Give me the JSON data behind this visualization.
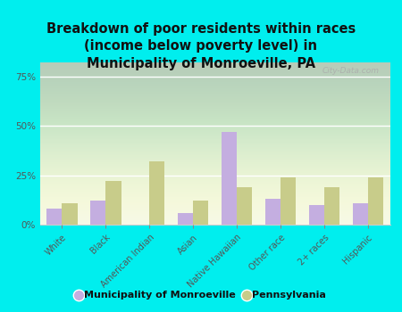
{
  "title": "Breakdown of poor residents within races\n(income below poverty level) in\nMunicipality of Monroeville, PA",
  "categories": [
    "White",
    "Black",
    "American Indian",
    "Asian",
    "Native Hawaiian",
    "Other race",
    "2+ races",
    "Hispanic"
  ],
  "monroeville_values": [
    8,
    12,
    0,
    6,
    47,
    13,
    10,
    11
  ],
  "pennsylvania_values": [
    11,
    22,
    32,
    12,
    19,
    24,
    19,
    24
  ],
  "monroeville_color": "#c4aee0",
  "pennsylvania_color": "#c8cc8a",
  "bg_outer": "#00eeee",
  "yticks": [
    0,
    25,
    50,
    75
  ],
  "ylim": [
    0,
    82
  ],
  "bar_width": 0.35,
  "title_fontsize": 10.5,
  "legend_label_monroeville": "Municipality of Monroeville",
  "legend_label_pennsylvania": "Pennsylvania",
  "watermark": "City-Data.com",
  "title_color": "#111111",
  "tick_label_color": "#555555",
  "chart_bg_color_top": "#f5f8e8",
  "chart_bg_color_bottom": "#eef5e0"
}
